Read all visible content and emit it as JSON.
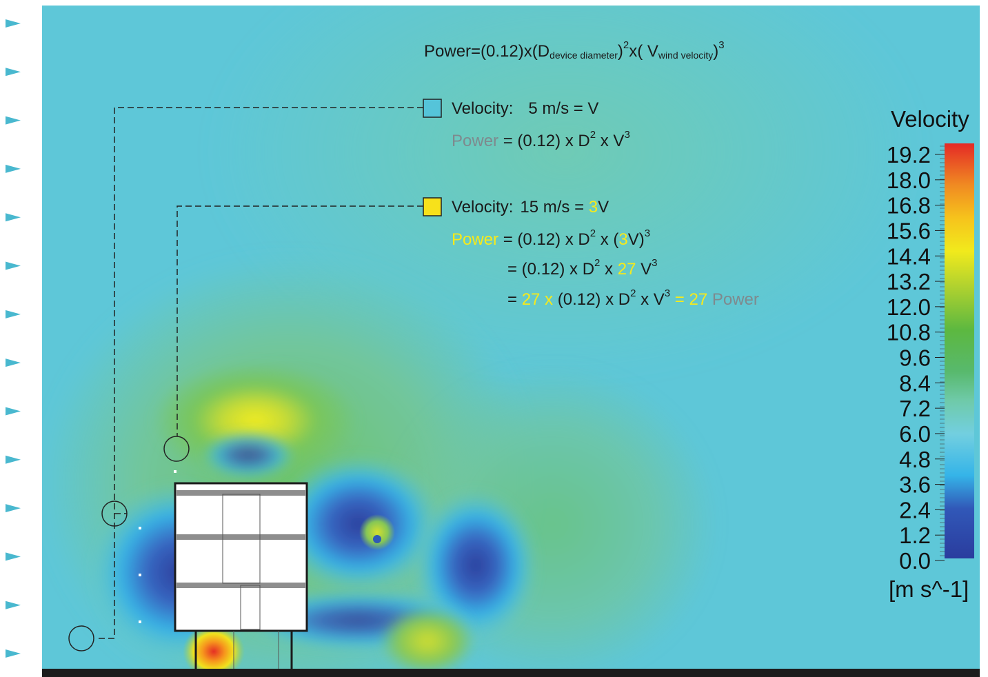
{
  "formula": {
    "main": "Power=(0.12)x(D",
    "device_sub": "device diameter",
    "sq": "2",
    "mid": "x( V",
    "wind_sub": "wind velocity",
    "cube": "3",
    "close": ")"
  },
  "probe1": {
    "vel_label": "Velocity:",
    "vel_value": "5 m/s =  V",
    "power_word": "Power",
    "power_rest": " = (0.12) x D",
    "sq": "2",
    "x_v": " x V",
    "cube": "3"
  },
  "probe2": {
    "vel_label": "Velocity:",
    "vel_value": "15 m/s = ",
    "vel_three": "3",
    "vel_v": "V",
    "power_word": "Power",
    "line1_a": " = (0.12) x D",
    "sq": "2",
    "line1_b": " x (",
    "line1_three": "3",
    "line1_c": "V)",
    "cube": "3",
    "line2_a": "= (0.12) x D",
    "line2_b": " x ",
    "line2_27": "27",
    "line2_c": " V",
    "line3_eq": "= ",
    "line3_27x": "27 x",
    "line3_a": " (0.12) x D",
    "line3_b": " x  V",
    "line3_eq27": " = 27",
    "line3_power": " Power"
  },
  "colorbar": {
    "title": "Velocity",
    "unit": "[m s^-1]",
    "ticks": [
      "19.2",
      "18.0",
      "16.8",
      "15.6",
      "14.4",
      "13.2",
      "12.0",
      "10.8",
      "9.6",
      "8.4",
      "7.2",
      "6.0",
      "4.8",
      "3.6",
      "2.4",
      "1.2",
      "0.0"
    ],
    "min": 0.0,
    "max": 19.2
  },
  "colors": {
    "field_base": "#5ec7d8",
    "probe_cyan": "#55c4d9",
    "probe_yellow": "#f7e11b",
    "highlight_yellow": "#f7ea1a",
    "ground": "#1c1c1c",
    "arrow": "#49b8cf"
  },
  "inflow_arrows": 14
}
